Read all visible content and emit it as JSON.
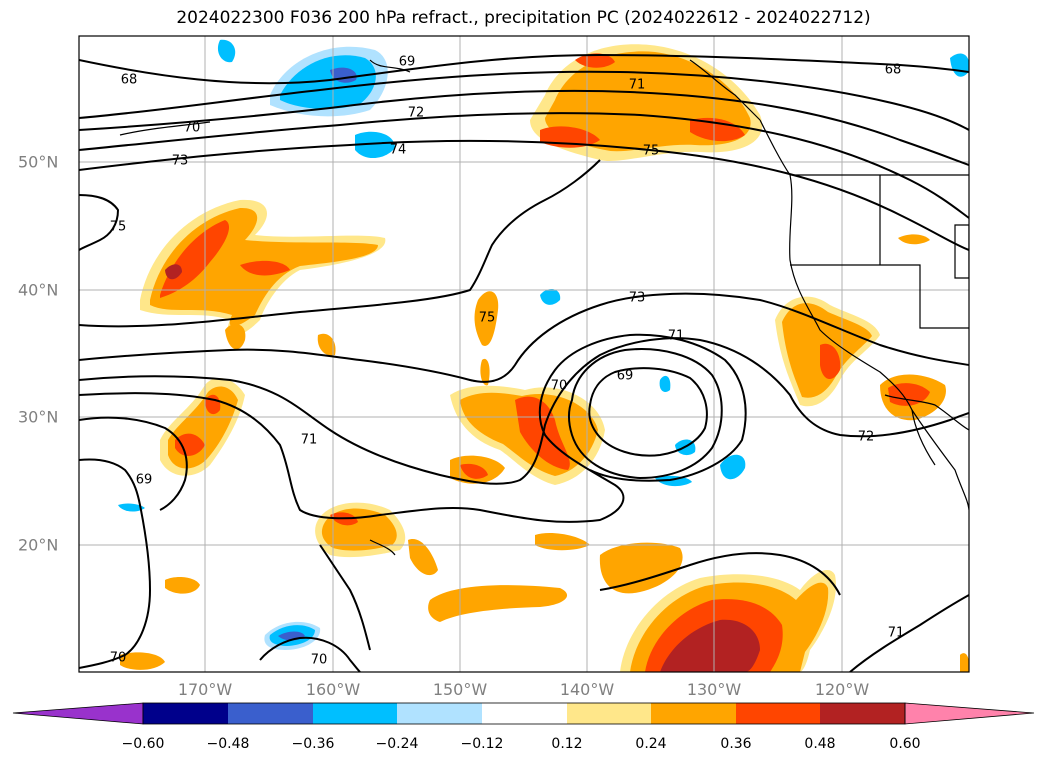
{
  "title": "2024022300 F036 200 hPa refract., precipitation PC (2024022612 - 2024022712)",
  "longitude_ticks": [
    "170°W",
    "160°W",
    "150°W",
    "140°W",
    "130°W",
    "120°W"
  ],
  "latitude_ticks": [
    "50°N",
    "40°N",
    "30°N",
    "20°N"
  ],
  "contour_labels": [
    "68",
    "69",
    "70",
    "72",
    "74",
    "73",
    "75",
    "71",
    "75",
    "68",
    "75",
    "73",
    "71",
    "69",
    "70",
    "71",
    "69",
    "72",
    "71",
    "70",
    "70"
  ],
  "colorbar": {
    "ticks": [
      "−0.60",
      "−0.48",
      "−0.36",
      "−0.24",
      "−0.12",
      "0.12",
      "0.24",
      "0.36",
      "0.48",
      "0.60"
    ],
    "colors": [
      "#9932cc",
      "#00008b",
      "#3a5fcd",
      "#00bfff",
      "#b0e2ff",
      "#ffffff",
      "#ffe78a",
      "#ffa500",
      "#ff4500",
      "#b22222",
      "#ff82ab"
    ]
  }
}
